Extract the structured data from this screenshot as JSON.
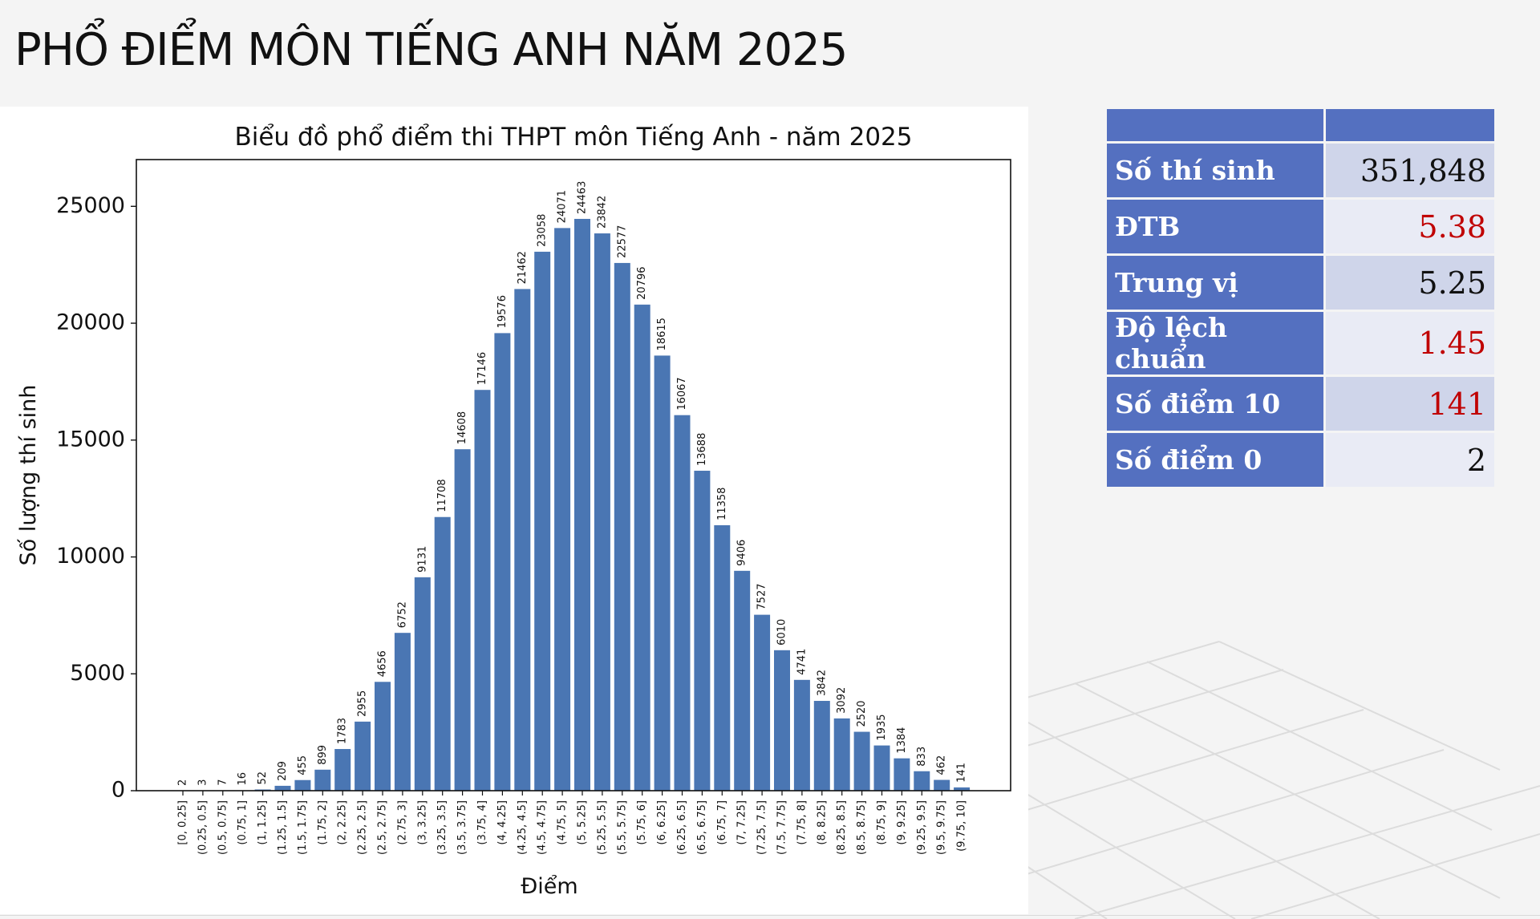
{
  "slide": {
    "title": "PHỔ ĐIỂM MÔN TIẾNG ANH NĂM 2025"
  },
  "stats": {
    "rows": [
      {
        "label": "Số thí sinh",
        "value": "351,848",
        "highlight": false
      },
      {
        "label": "ĐTB",
        "value": "5.38",
        "highlight": true
      },
      {
        "label": "Trung vị",
        "value": "5.25",
        "highlight": false
      },
      {
        "label": "Độ lệch chuẩn",
        "value": "1.45",
        "highlight": true
      },
      {
        "label": "Số điểm 10",
        "value": "141",
        "highlight": true
      },
      {
        "label": "Số điểm 0",
        "value": "2",
        "highlight": false
      }
    ],
    "header_color": "#5470c0",
    "highlight_color": "#c00000"
  },
  "chart_data": {
    "type": "bar",
    "title": "Biểu đồ phổ điểm thi THPT môn Tiếng Anh - năm 2025",
    "xlabel": "Điểm",
    "ylabel": "Số lượng thí sinh",
    "ylim": [
      0,
      27000
    ],
    "yticks": [
      0,
      5000,
      10000,
      15000,
      20000,
      25000
    ],
    "bar_color": "#4a76b3",
    "grid": false,
    "categories": [
      "[0, 0.25]",
      "(0.25, 0.5]",
      "(0.5, 0.75]",
      "(0.75, 1]",
      "(1, 1.25]",
      "(1.25, 1.5]",
      "(1.5, 1.75]",
      "(1.75, 2]",
      "(2, 2.25]",
      "(2.25, 2.5]",
      "(2.5, 2.75]",
      "(2.75, 3]",
      "(3, 3.25]",
      "(3.25, 3.5]",
      "(3.5, 3.75]",
      "(3.75, 4]",
      "(4, 4.25]",
      "(4.25, 4.5]",
      "(4.5, 4.75]",
      "(4.75, 5]",
      "(5, 5.25]",
      "(5.25, 5.5]",
      "(5.5, 5.75]",
      "(5.75, 6]",
      "(6, 6.25]",
      "(6.25, 6.5]",
      "(6.5, 6.75]",
      "(6.75, 7]",
      "(7, 7.25]",
      "(7.25, 7.5]",
      "(7.5, 7.75]",
      "(7.75, 8]",
      "(8, 8.25]",
      "(8.25, 8.5]",
      "(8.5, 8.75]",
      "(8.75, 9]",
      "(9, 9.25]",
      "(9.25, 9.5]",
      "(9.5, 9.75]",
      "(9.75, 10]"
    ],
    "values": [
      2,
      3,
      7,
      16,
      52,
      209,
      455,
      899,
      1783,
      2955,
      4656,
      6752,
      9131,
      11708,
      14608,
      17146,
      19576,
      21462,
      23058,
      24071,
      24463,
      23842,
      22577,
      20796,
      18615,
      16067,
      13688,
      11358,
      9406,
      7527,
      6010,
      4741,
      3842,
      3092,
      2520,
      1935,
      1384,
      833,
      462,
      141
    ]
  }
}
